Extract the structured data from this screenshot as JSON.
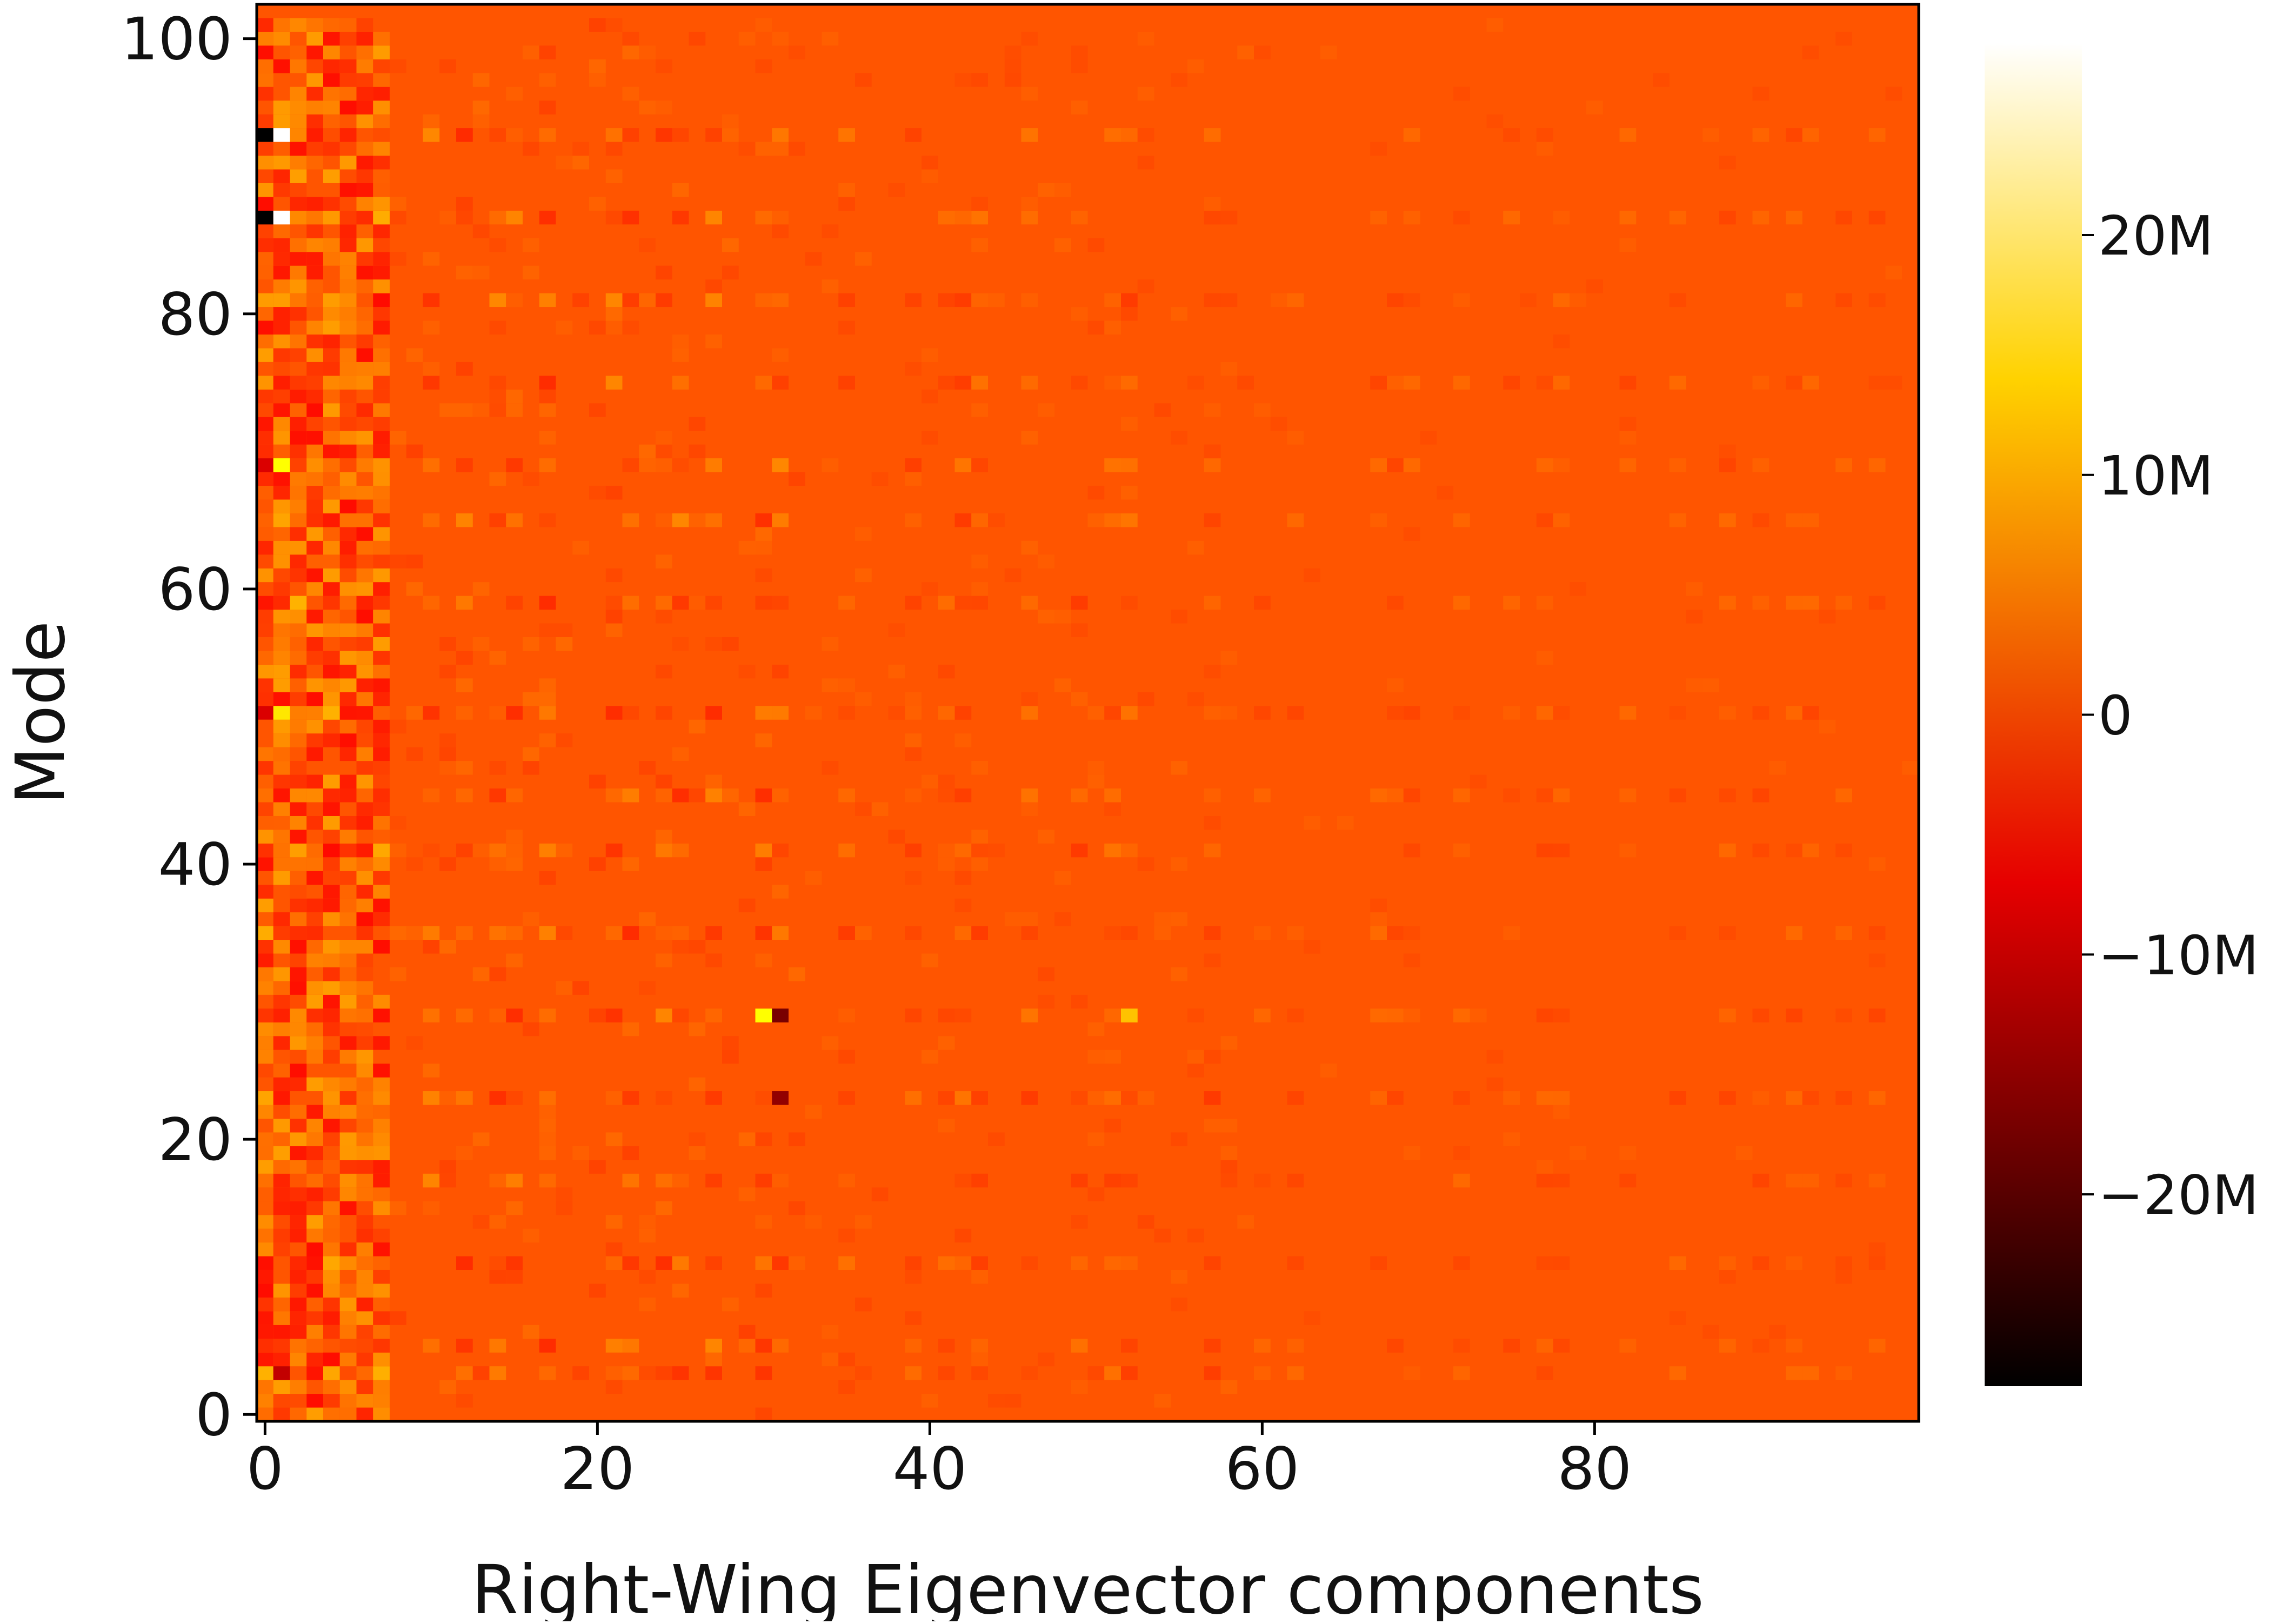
{
  "chart_data": {
    "type": "heatmap",
    "title": "",
    "xlabel": "Right-Wing Eigenvector components",
    "ylabel": "Mode",
    "x_range": [
      0,
      100
    ],
    "y_range": [
      0,
      103
    ],
    "x_ticks": [
      0,
      20,
      40,
      60,
      80
    ],
    "x_tick_labels": [
      "0",
      "20",
      "40",
      "60",
      "80"
    ],
    "y_ticks": [
      0,
      20,
      40,
      60,
      80,
      100
    ],
    "y_tick_labels": [
      "0",
      "20",
      "40",
      "60",
      "80",
      "100"
    ],
    "colormap": "hot",
    "colorbar": {
      "min": -28000000,
      "max": 28000000,
      "ticks": [
        20000000,
        10000000,
        0,
        -10000000,
        -20000000
      ],
      "tick_labels": [
        "20M",
        "10M",
        "0",
        "−10M",
        "−20M"
      ]
    },
    "background_value": 0,
    "highlighted_cells": [
      {
        "x": 0,
        "y": 93,
        "value": -28000000
      },
      {
        "x": 1,
        "y": 93,
        "value": 28000000
      },
      {
        "x": 0,
        "y": 87,
        "value": -28000000
      },
      {
        "x": 1,
        "y": 87,
        "value": 28000000
      },
      {
        "x": 0,
        "y": 69,
        "value": -10000000
      },
      {
        "x": 1,
        "y": 69,
        "value": 14000000
      },
      {
        "x": 0,
        "y": 51,
        "value": -10000000
      },
      {
        "x": 1,
        "y": 51,
        "value": 12000000
      },
      {
        "x": 1,
        "y": 3,
        "value": -12000000
      },
      {
        "x": 31,
        "y": 29,
        "value": -18000000
      },
      {
        "x": 31,
        "y": 23,
        "value": -16000000
      },
      {
        "x": 30,
        "y": 29,
        "value": 14000000
      },
      {
        "x": 52,
        "y": 29,
        "value": 9000000
      }
    ],
    "strong_modes": [
      93,
      87,
      81,
      75,
      69,
      65,
      59,
      51,
      45,
      41,
      35,
      29,
      23,
      17,
      11,
      5,
      3
    ],
    "strong_components": [
      0,
      1,
      2,
      4,
      7,
      10,
      12,
      14,
      15,
      17,
      21,
      22,
      24,
      25,
      27,
      30,
      31,
      35,
      39,
      41,
      42,
      43,
      46,
      49,
      51,
      52,
      57,
      60,
      62,
      67,
      68,
      69,
      72,
      75,
      77,
      78,
      82,
      85,
      88,
      90,
      92,
      93,
      95,
      97
    ]
  }
}
